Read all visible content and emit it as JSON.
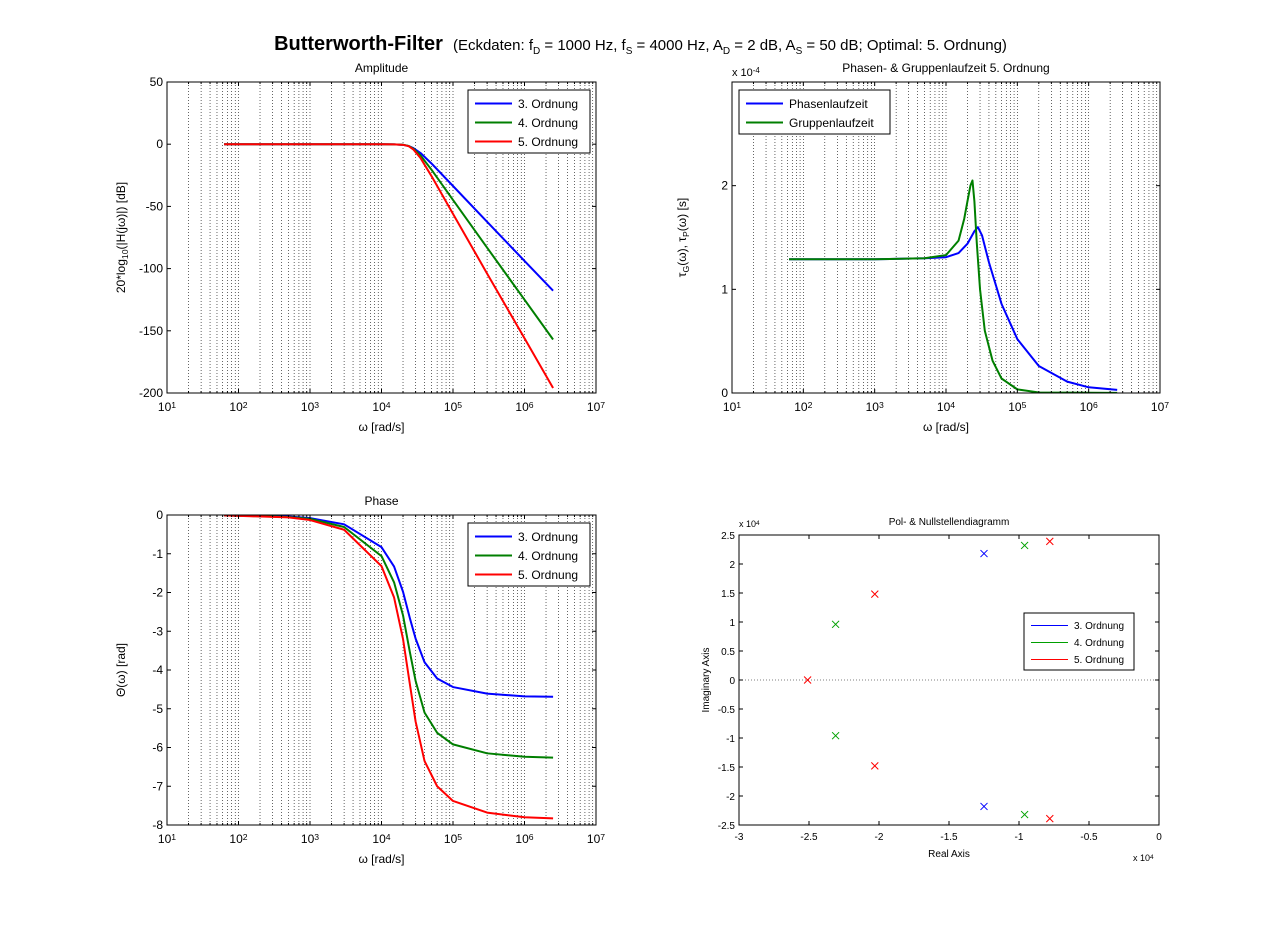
{
  "figure": {
    "title": "Butterworth-Filter",
    "subtitle_parts": [
      "(Eckdaten: f",
      "D",
      " = 1000 Hz, f",
      "S",
      " = 4000 Hz, A",
      "D",
      " = 2 dB, A",
      "S",
      " = 50 dB; Optimal: 5. Ordnung)"
    ]
  },
  "chart_data": [
    {
      "id": "amplitude",
      "type": "line",
      "title": "Amplitude",
      "xlabel": "ω [rad/s]",
      "ylabel": "20*log10(|H(jω)|) [dB]",
      "xscale": "log",
      "xlim": [
        10,
        10000000
      ],
      "ylim": [
        -200,
        50
      ],
      "xticks": [
        10,
        100,
        1000,
        10000,
        100000,
        1000000,
        10000000
      ],
      "xtick_labels": [
        "10^1",
        "10^2",
        "10^3",
        "10^4",
        "10^5",
        "10^6",
        "10^7"
      ],
      "yticks": [
        -200,
        -150,
        -100,
        -50,
        0,
        50
      ],
      "ytick_labels": [
        "-200",
        "-150",
        "-100",
        "-50",
        "0",
        "50"
      ],
      "grid": "x-major-minor",
      "legend_position": "top-right",
      "series": [
        {
          "name": "3. Ordnung",
          "color": "#0000ff",
          "x": [
            63,
            1000,
            10000,
            15000,
            20000,
            24000,
            28000,
            35000,
            50000,
            100000,
            300000,
            1000000,
            2510000
          ],
          "y": [
            0,
            0,
            0,
            -0.1,
            -0.5,
            -1.5,
            -3.2,
            -7,
            -15.5,
            -33.6,
            -62.4,
            -93.8,
            -117.8
          ]
        },
        {
          "name": "4. Ordnung",
          "color": "#007f00",
          "x": [
            63,
            1000,
            10000,
            15000,
            20000,
            24000,
            28000,
            35000,
            50000,
            100000,
            300000,
            1000000,
            2510000
          ],
          "y": [
            0,
            0,
            0,
            -0.1,
            -0.4,
            -1.4,
            -3.7,
            -9,
            -20.5,
            -44.8,
            -83.2,
            -125,
            -157
          ]
        },
        {
          "name": "5. Ordnung",
          "color": "#ff0000",
          "x": [
            63,
            1000,
            10000,
            15000,
            20000,
            24000,
            28000,
            35000,
            50000,
            100000,
            300000,
            1000000,
            2510000
          ],
          "y": [
            0,
            0,
            0,
            -0.1,
            -0.5,
            -1.6,
            -4.3,
            -11,
            -25.6,
            -56,
            -104,
            -156,
            -196
          ]
        }
      ]
    },
    {
      "id": "laufzeit",
      "type": "line",
      "title": "Phasen- & Gruppenlaufzeit 5. Ordnung",
      "xlabel": "ω [rad/s]",
      "ylabel": "τG(ω), τP(ω) [s]",
      "y_exponent_label": "x 10-4",
      "xscale": "log",
      "xlim": [
        10,
        10000000
      ],
      "ylim": [
        0,
        0.0003
      ],
      "xticks": [
        10,
        100,
        1000,
        10000,
        100000,
        1000000,
        10000000
      ],
      "xtick_labels": [
        "10^1",
        "10^2",
        "10^3",
        "10^4",
        "10^5",
        "10^6",
        "10^7"
      ],
      "yticks": [
        0,
        0.0001,
        0.0002
      ],
      "ytick_labels": [
        "0",
        "1",
        "2"
      ],
      "grid": "x-major-minor",
      "legend_position": "top-left",
      "series": [
        {
          "name": "Phasenlaufzeit",
          "color": "#0000ff",
          "x": [
            63,
            1000,
            5000,
            10000,
            15000,
            20000,
            25000,
            28000,
            32000,
            40000,
            60000,
            100000,
            200000,
            500000,
            1000000,
            2510000
          ],
          "y": [
            0.000129,
            0.000129,
            0.00013,
            0.000131,
            0.000135,
            0.000144,
            0.000156,
            0.00016,
            0.000152,
            0.000126,
            8.6e-05,
            5.2e-05,
            2.6e-05,
            1.1e-05,
            5.5e-06,
            3e-06
          ]
        },
        {
          "name": "Gruppenlaufzeit",
          "color": "#007f00",
          "x": [
            63,
            1000,
            5000,
            10000,
            15000,
            18000,
            20000,
            22000,
            23500,
            25000,
            27000,
            30000,
            35000,
            45000,
            60000,
            100000,
            200000,
            2510000
          ],
          "y": [
            0.000129,
            0.000129,
            0.00013,
            0.000133,
            0.000147,
            0.000168,
            0.000185,
            0.0002,
            0.000205,
            0.000185,
            0.000145,
            0.0001,
            6e-05,
            3.1e-05,
            1.4e-05,
            3.5e-06,
            5e-07,
            1e-07
          ]
        }
      ]
    },
    {
      "id": "phase",
      "type": "line",
      "title": "Phase",
      "xlabel": "ω [rad/s]",
      "ylabel": "Θ(ω) [rad]",
      "xscale": "log",
      "xlim": [
        10,
        10000000
      ],
      "ylim": [
        -8,
        0
      ],
      "xticks": [
        10,
        100,
        1000,
        10000,
        100000,
        1000000,
        10000000
      ],
      "xtick_labels": [
        "10^1",
        "10^2",
        "10^3",
        "10^4",
        "10^5",
        "10^6",
        "10^7"
      ],
      "yticks": [
        -8,
        -7,
        -6,
        -5,
        -4,
        -3,
        -2,
        -1,
        0
      ],
      "ytick_labels": [
        "-8",
        "-7",
        "-6",
        "-5",
        "-4",
        "-3",
        "-2",
        "-1",
        "0"
      ],
      "grid": "x-major-minor",
      "legend_position": "top-right",
      "series": [
        {
          "name": "3. Ordnung",
          "color": "#0000ff",
          "x": [
            63,
            500,
            1000,
            3000,
            10000,
            15000,
            20000,
            25000,
            30000,
            40000,
            60000,
            100000,
            300000,
            1000000,
            2510000
          ],
          "y": [
            -0.01,
            -0.04,
            -0.08,
            -0.24,
            -0.83,
            -1.33,
            -1.98,
            -2.67,
            -3.19,
            -3.8,
            -4.22,
            -4.44,
            -4.61,
            -4.68,
            -4.69
          ]
        },
        {
          "name": "4. Ordnung",
          "color": "#007f00",
          "x": [
            63,
            500,
            1000,
            3000,
            10000,
            15000,
            20000,
            25000,
            30000,
            40000,
            60000,
            100000,
            300000,
            1000000,
            2510000
          ],
          "y": [
            -0.01,
            -0.05,
            -0.1,
            -0.31,
            -1.06,
            -1.74,
            -2.59,
            -3.55,
            -4.28,
            -5.1,
            -5.62,
            -5.92,
            -6.15,
            -6.24,
            -6.26
          ]
        },
        {
          "name": "5. Ordnung",
          "color": "#ff0000",
          "x": [
            63,
            500,
            1000,
            3000,
            10000,
            15000,
            20000,
            25000,
            30000,
            40000,
            60000,
            100000,
            300000,
            1000000,
            2510000
          ],
          "y": [
            -0.01,
            -0.06,
            -0.13,
            -0.38,
            -1.32,
            -2.13,
            -3.2,
            -4.38,
            -5.33,
            -6.35,
            -7,
            -7.38,
            -7.68,
            -7.8,
            -7.83
          ]
        }
      ]
    },
    {
      "id": "pn",
      "type": "scatter",
      "title": "Pol- & Nullstellendiagramm",
      "xlabel": "Real Axis",
      "ylabel": "Imaginary Axis",
      "x_exponent_label": "x 104",
      "y_exponent_label": "x 104",
      "xlim": [
        -30000,
        0
      ],
      "ylim": [
        -25000,
        25000
      ],
      "xticks": [
        -30000,
        -25000,
        -20000,
        -15000,
        -10000,
        -5000,
        0
      ],
      "xtick_labels": [
        "-3",
        "-2.5",
        "-2",
        "-1.5",
        "-1",
        "-0.5",
        "0"
      ],
      "yticks": [
        -25000,
        -20000,
        -15000,
        -10000,
        -5000,
        0,
        5000,
        10000,
        15000,
        20000,
        25000
      ],
      "ytick_labels": [
        "-2.5",
        "-2",
        "-1.5",
        "-1",
        "-0.5",
        "0",
        "0.5",
        "1",
        "1.5",
        "2",
        "2.5"
      ],
      "grid": "zero-lines",
      "legend_position": "right",
      "marker": "x",
      "series": [
        {
          "name": "3. Ordnung",
          "color": "#0000ff",
          "x": [
            -12500,
            -12500
          ],
          "y": [
            21800,
            -21800
          ]
        },
        {
          "name": "4. Ordnung",
          "color": "#00a000",
          "x": [
            -23100,
            -23100,
            -9600,
            -9600
          ],
          "y": [
            9600,
            -9600,
            23200,
            -23200
          ]
        },
        {
          "name": "5. Ordnung",
          "color": "#ff0000",
          "x": [
            -25100,
            -20300,
            -20300,
            -7800,
            -7800
          ],
          "y": [
            0,
            14800,
            -14800,
            23900,
            -23900
          ]
        }
      ]
    }
  ]
}
